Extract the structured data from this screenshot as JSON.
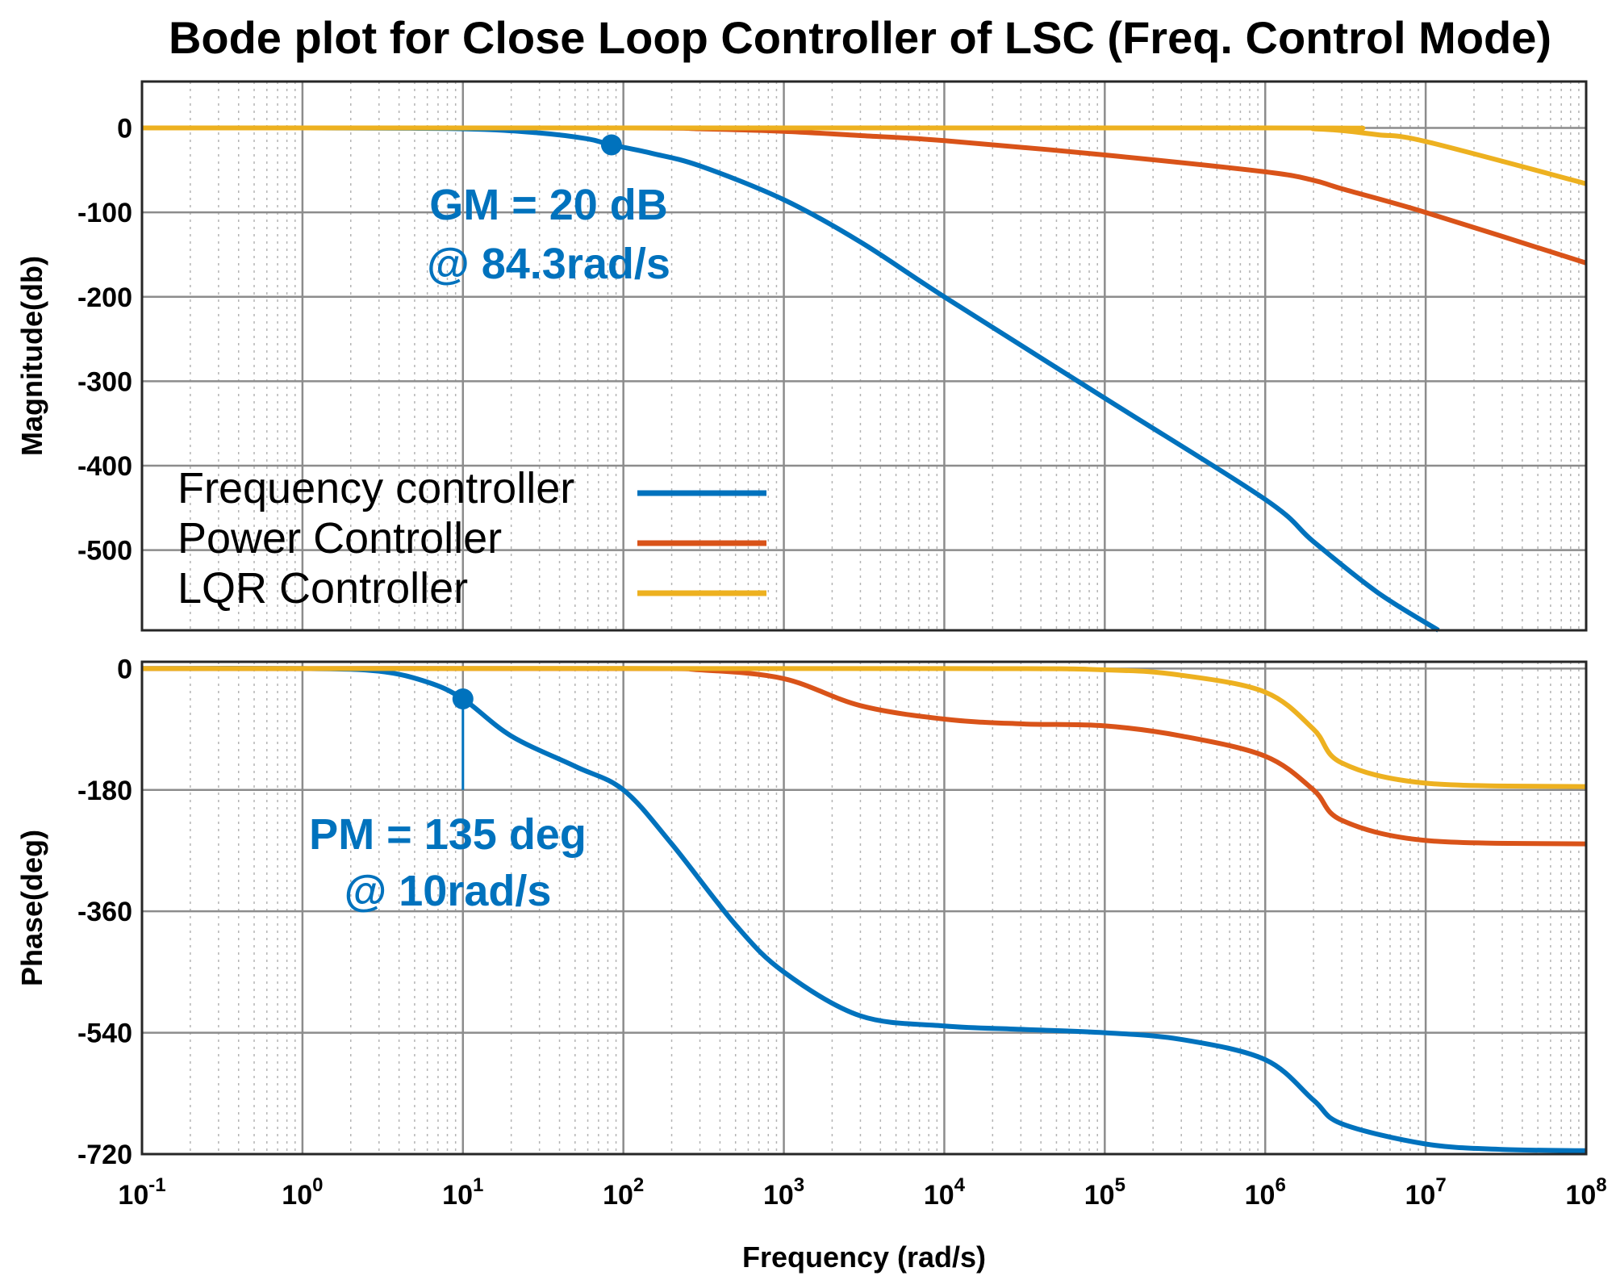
{
  "chart_data": {
    "type": "line",
    "title": "Bode plot for Close Loop Controller of LSC (Freq. Control Mode)",
    "xlabel": "Frequency  (rad/s)",
    "xscale": "log",
    "xlim": [
      0.1,
      100000000
    ],
    "x_ticks": [
      {
        "base": "10",
        "exp": "-1"
      },
      {
        "base": "10",
        "exp": "0"
      },
      {
        "base": "10",
        "exp": "1"
      },
      {
        "base": "10",
        "exp": "2"
      },
      {
        "base": "10",
        "exp": "3"
      },
      {
        "base": "10",
        "exp": "4"
      },
      {
        "base": "10",
        "exp": "5"
      },
      {
        "base": "10",
        "exp": "6"
      },
      {
        "base": "10",
        "exp": "7"
      },
      {
        "base": "10",
        "exp": "8"
      }
    ],
    "grid": true,
    "legend_position": "bottom-left of magnitude panel",
    "colors": {
      "Frequency controller": "#0072BD",
      "Power Controller": "#D95319",
      "LQR Controller": "#EDB120"
    },
    "panels": {
      "magnitude": {
        "ylabel": "Magnitude(db)",
        "ylim": [
          -595,
          55
        ],
        "yticks": [
          0,
          -100,
          -200,
          -300,
          -400,
          -500
        ],
        "ytick_labels": [
          "0",
          "-100",
          "-200",
          "-300",
          "-400",
          "-500"
        ],
        "series": [
          {
            "name": "Frequency controller",
            "x": [
              0.1,
              1,
              10,
              30,
              60,
              84.3,
              150,
              300,
              1000,
              3000,
              10000,
              100000,
              1000000,
              2000000,
              5000000,
              12000000
            ],
            "y": [
              0,
              0,
              -1,
              -6,
              -13,
              -20,
              -30,
              -45,
              -85,
              -135,
              -200,
              -320,
              -440,
              -490,
              -550,
              -595
            ]
          },
          {
            "name": "Power Controller",
            "x": [
              0.1,
              100,
              300,
              1000,
              3000,
              10000,
              100000,
              1000000,
              2000000,
              3000000,
              10000000,
              100000000
            ],
            "y": [
              0,
              0,
              -1,
              -4,
              -9,
              -15,
              -32,
              -52,
              -62,
              -72,
              -100,
              -160
            ]
          },
          {
            "name": "LQR Controller",
            "x": [
              0.1,
              1000000,
              2000000,
              3000000,
              5000000,
              10000000,
              100000000
            ],
            "y": [
              0,
              0,
              -1,
              -3,
              -8,
              -16,
              -66
            ]
          }
        ]
      },
      "phase": {
        "ylabel": "Phase(deg)",
        "ylim": [
          -720,
          10
        ],
        "yticks": [
          0,
          -180,
          -360,
          -540,
          -720
        ],
        "ytick_labels": [
          "0",
          "-180",
          "-360",
          "-540",
          "-720"
        ],
        "series": [
          {
            "name": "Frequency controller",
            "x": [
              0.1,
              1,
              3,
              6,
              10,
              20,
              50,
              100,
              200,
              500,
              1000,
              3000,
              10000,
              30000,
              100000,
              300000,
              1000000,
              2000000,
              3000000,
              10000000,
              30000000,
              100000000
            ],
            "y": [
              0,
              0,
              -4,
              -20,
              -45,
              -100,
              -145,
              -180,
              -260,
              -380,
              -450,
              -515,
              -530,
              -535,
              -540,
              -550,
              -580,
              -640,
              -675,
              -705,
              -713,
              -715
            ]
          },
          {
            "name": "Power Controller",
            "x": [
              0.1,
              100,
              300,
              1000,
              3000,
              10000,
              30000,
              100000,
              300000,
              1000000,
              2000000,
              3000000,
              10000000,
              100000000
            ],
            "y": [
              0,
              0,
              -2,
              -15,
              -55,
              -75,
              -82,
              -85,
              -100,
              -130,
              -180,
              -225,
              -255,
              -260
            ]
          },
          {
            "name": "LQR Controller",
            "x": [
              0.1,
              10000,
              100000,
              300000,
              1000000,
              2000000,
              3000000,
              10000000,
              100000000
            ],
            "y": [
              0,
              0,
              -2,
              -10,
              -35,
              -90,
              -140,
              -170,
              -175
            ]
          }
        ]
      }
    },
    "annotations": {
      "gain_margin": {
        "line1": "GM = 20 dB",
        "line2": "@ 84.3rad/s",
        "marker_x": 84.3,
        "marker_y": -20
      },
      "phase_margin": {
        "line1": "PM = 135 deg",
        "line2": "@ 10rad/s",
        "marker_x": 10,
        "marker_y": -45,
        "drop_to_y": -180
      }
    }
  }
}
